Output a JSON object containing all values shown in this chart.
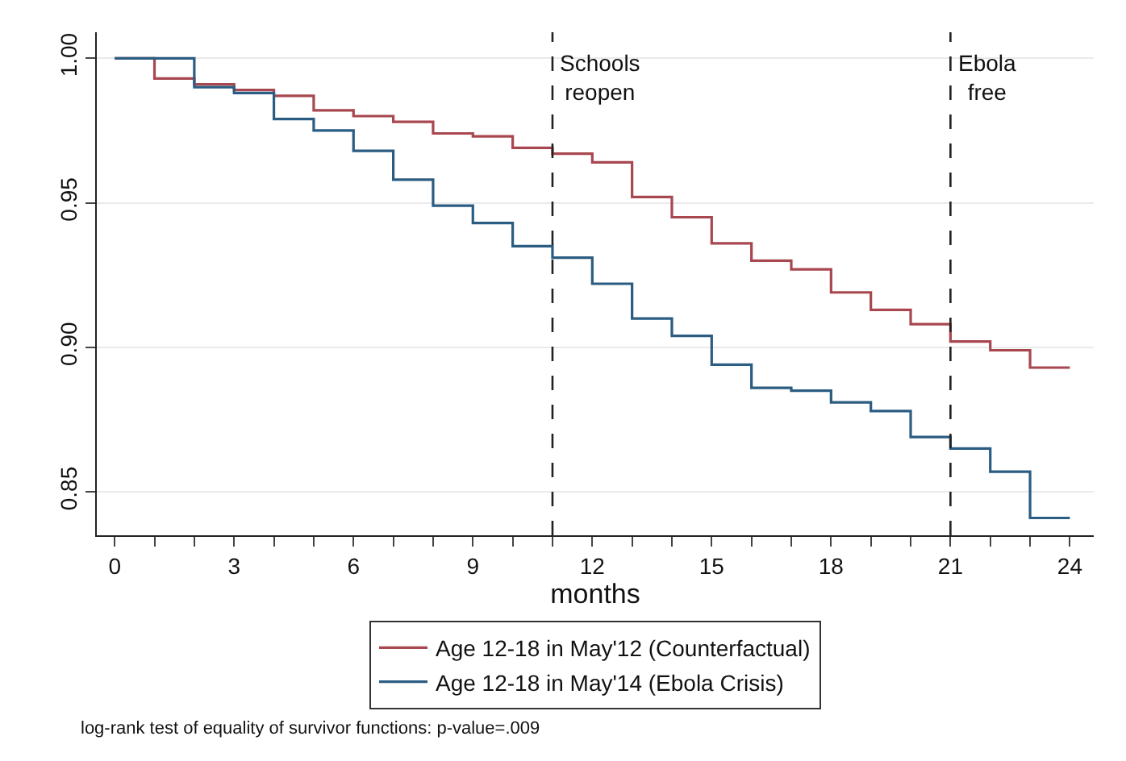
{
  "chart_data": {
    "type": "step",
    "xlabel": "months",
    "x": [
      0,
      1,
      2,
      3,
      4,
      5,
      6,
      7,
      8,
      9,
      10,
      11,
      12,
      13,
      14,
      15,
      16,
      17,
      18,
      19,
      20,
      21,
      22,
      23,
      24
    ],
    "series": [
      {
        "name": "Age 12-18 in May'12 (Counterfactual)",
        "color": "#a8474f",
        "values": [
          1.0,
          0.993,
          0.991,
          0.989,
          0.987,
          0.982,
          0.98,
          0.978,
          0.974,
          0.973,
          0.969,
          0.967,
          0.964,
          0.952,
          0.945,
          0.936,
          0.93,
          0.927,
          0.919,
          0.913,
          0.908,
          0.902,
          0.899,
          0.893,
          0.893
        ]
      },
      {
        "name": "Age 12-18 in May'14 (Ebola Crisis)",
        "color": "#2b5c82",
        "values": [
          1.0,
          1.0,
          0.99,
          0.988,
          0.979,
          0.975,
          0.968,
          0.958,
          0.949,
          0.943,
          0.935,
          0.931,
          0.922,
          0.91,
          0.904,
          0.894,
          0.886,
          0.885,
          0.881,
          0.878,
          0.869,
          0.865,
          0.857,
          0.841,
          0.841
        ]
      }
    ],
    "xlim": [
      -0.45,
      24.6
    ],
    "xticks": [
      0,
      {
        "value": 1,
        "label": null
      },
      {
        "value": 2,
        "label": null
      },
      3,
      {
        "value": 4,
        "label": null
      },
      {
        "value": 5,
        "label": null
      },
      6,
      {
        "value": 7,
        "label": null
      },
      {
        "value": 8,
        "label": null
      },
      9,
      {
        "value": 10,
        "label": null
      },
      {
        "value": 11,
        "label": null
      },
      12,
      {
        "value": 13,
        "label": null
      },
      {
        "value": 14,
        "label": null
      },
      15,
      {
        "value": 16,
        "label": null
      },
      {
        "value": 17,
        "label": null
      },
      18,
      {
        "value": 19,
        "label": null
      },
      {
        "value": 20,
        "label": null
      },
      21,
      {
        "value": 22,
        "label": null
      },
      {
        "value": 23,
        "label": null
      },
      24
    ],
    "ylim": [
      0.835,
      1.009
    ],
    "yticks": [
      {
        "value": 0.85,
        "label": "0.85"
      },
      {
        "value": 0.9,
        "label": "0.90"
      },
      {
        "value": 0.95,
        "label": "0.95"
      },
      {
        "value": 1.0,
        "label": "1.00"
      }
    ],
    "grid": "y",
    "legend": "bottom",
    "marker": "none",
    "line_style": "solid",
    "ref_lines": [
      {
        "axis": "x",
        "value": 11,
        "label": "Schools\nreopen",
        "line_style": "dashed"
      },
      {
        "axis": "x",
        "value": 21,
        "label": "Ebola\nfree",
        "line_style": "dashed"
      }
    ],
    "annotations": [
      "log-rank test of equality of survivor functions: p-value=.009"
    ]
  }
}
